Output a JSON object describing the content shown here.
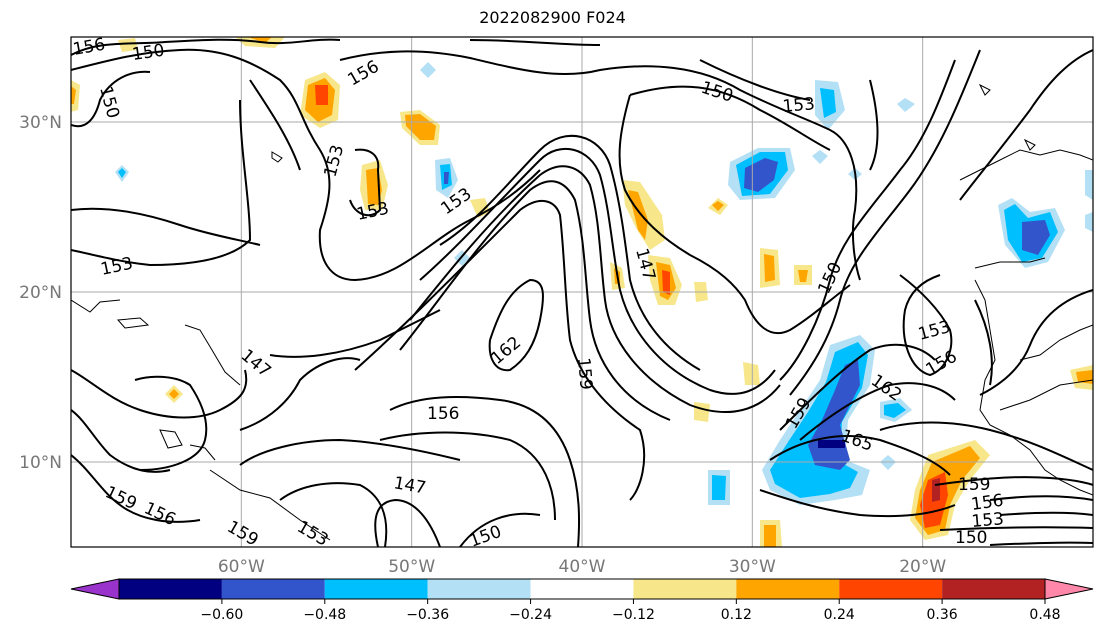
{
  "title": "2022082900 F024",
  "map": {
    "x_ticks": [
      {
        "lon": -60,
        "label": "60°W"
      },
      {
        "lon": -50,
        "label": "50°W"
      },
      {
        "lon": -40,
        "label": "40°W"
      },
      {
        "lon": -30,
        "label": "30°W"
      },
      {
        "lon": -20,
        "label": "20°W"
      }
    ],
    "y_ticks": [
      {
        "lat": 30,
        "label": "30°N"
      },
      {
        "lat": 20,
        "label": "20°N"
      },
      {
        "lat": 10,
        "label": "10°N"
      }
    ],
    "contour_labels": [
      {
        "text": "156"
      },
      {
        "text": "150"
      },
      {
        "text": "150"
      },
      {
        "text": "156"
      },
      {
        "text": "153"
      },
      {
        "text": "153"
      },
      {
        "text": "153"
      },
      {
        "text": "150"
      },
      {
        "text": "153"
      },
      {
        "text": "153"
      },
      {
        "text": "147"
      },
      {
        "text": "150"
      },
      {
        "text": "162"
      },
      {
        "text": "159"
      },
      {
        "text": "147"
      },
      {
        "text": "156"
      },
      {
        "text": "153"
      },
      {
        "text": "156"
      },
      {
        "text": "162"
      },
      {
        "text": "159"
      },
      {
        "text": "165"
      },
      {
        "text": "159"
      },
      {
        "text": "156"
      },
      {
        "text": "153"
      },
      {
        "text": "150"
      },
      {
        "text": "159"
      },
      {
        "text": "156"
      },
      {
        "text": "159"
      },
      {
        "text": "153"
      },
      {
        "text": "147"
      },
      {
        "text": "150"
      }
    ]
  },
  "colorbar": {
    "colors": [
      "#9933cc",
      "#000080",
      "#3355cc",
      "#00bfff",
      "#b3e0f5",
      "#ffffff",
      "#f7e78a",
      "#ffa500",
      "#ff4500",
      "#b22222",
      "#ff88aa"
    ],
    "tick_labels": [
      "−0.60",
      "−0.48",
      "−0.36",
      "−0.24",
      "−0.12",
      "0.12",
      "0.24",
      "0.36",
      "0.48",
      "0.60"
    ]
  },
  "chart_data": {
    "type": "heatmap",
    "title": "2022082900 F024",
    "xlim": [
      -70,
      -10
    ],
    "ylim": [
      5,
      35
    ],
    "x_ticks": [
      "60°W",
      "50°W",
      "40°W",
      "30°W",
      "20°W"
    ],
    "y_ticks": [
      "30°N",
      "20°N",
      "10°N"
    ],
    "grid": true,
    "contour_levels": [
      147,
      150,
      153,
      156,
      159,
      162,
      165
    ],
    "colorbar_levels": [
      -0.6,
      -0.48,
      -0.36,
      -0.24,
      -0.12,
      0.12,
      0.24,
      0.36,
      0.48,
      0.6
    ],
    "colorbar_extend": "both",
    "colorbar_placement": "bottom"
  }
}
